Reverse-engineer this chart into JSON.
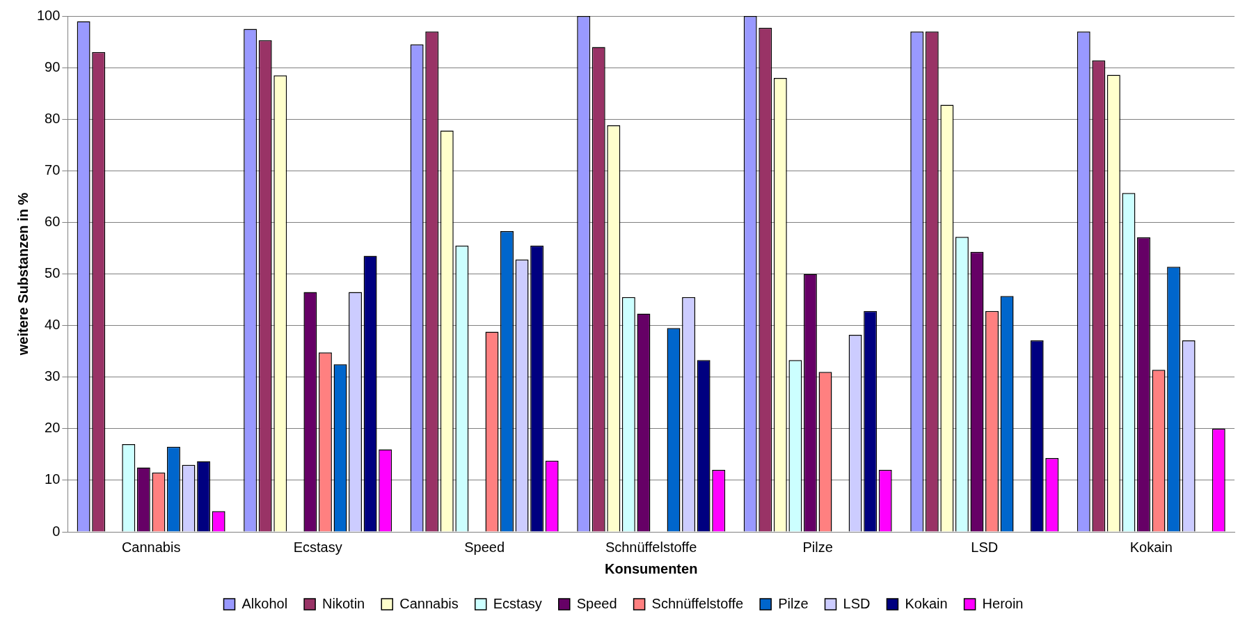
{
  "chart_data": {
    "type": "bar",
    "xlabel": "Konsumenten",
    "ylabel": "weitere Substanzen in %",
    "categories": [
      "Cannabis",
      "Ecstasy",
      "Speed",
      "Schnüffelstoffe",
      "Pilze",
      "LSD",
      "Kokain"
    ],
    "ylim": [
      0,
      100
    ],
    "yticks": [
      0,
      10,
      20,
      30,
      40,
      50,
      60,
      70,
      80,
      90,
      100
    ],
    "grid": "y",
    "legend": "bottom",
    "series": [
      {
        "name": "Alkohol",
        "color": "#9999ff",
        "values": [
          99,
          97.5,
          94.5,
          100,
          100,
          97,
          97
        ]
      },
      {
        "name": "Nikotin",
        "color": "#993366",
        "values": [
          93,
          95.3,
          97,
          94,
          97.7,
          97,
          91.4
        ]
      },
      {
        "name": "Cannabis",
        "color": "#ffffcc",
        "values": [
          null,
          88.5,
          77.8,
          78.8,
          88,
          82.8,
          88.6
        ]
      },
      {
        "name": "Ecstasy",
        "color": "#ccffff",
        "values": [
          17,
          null,
          55.5,
          45.5,
          33.3,
          57.2,
          65.7
        ]
      },
      {
        "name": "Speed",
        "color": "#660066",
        "values": [
          12.5,
          46.5,
          null,
          42.3,
          50,
          54.3,
          57.1
        ]
      },
      {
        "name": "Schnüffelstoffe",
        "color": "#ff8080",
        "values": [
          11.5,
          34.8,
          38.8,
          null,
          31,
          42.8,
          31.4
        ]
      },
      {
        "name": "Pilze",
        "color": "#0066cc",
        "values": [
          16.5,
          32.5,
          58.3,
          39.5,
          null,
          45.7,
          51.4
        ]
      },
      {
        "name": "LSD",
        "color": "#ccccff",
        "values": [
          13,
          46.5,
          52.8,
          45.5,
          38.2,
          null,
          37.1
        ]
      },
      {
        "name": "Kokain",
        "color": "#000080",
        "values": [
          13.7,
          53.5,
          55.5,
          33.3,
          42.8,
          37.1,
          null
        ]
      },
      {
        "name": "Heroin",
        "color": "#ff00ff",
        "values": [
          4,
          16,
          13.8,
          12,
          12,
          14.3,
          20
        ]
      }
    ]
  }
}
